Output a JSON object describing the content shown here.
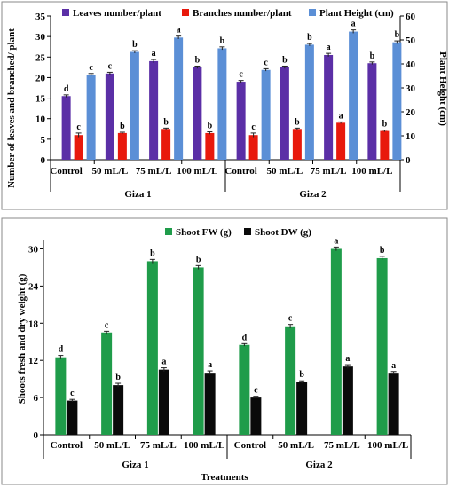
{
  "panels": [
    {
      "chart_data": {
        "type": "bar",
        "categories": [
          "Control",
          "50 mL/L",
          "75 mL/L",
          "100 mL/L",
          "Control",
          "50 mL/L",
          "75 mL/L",
          "100 mL/L"
        ],
        "groups": [
          {
            "label": "Giza 1",
            "size": 4
          },
          {
            "label": "Giza 2",
            "size": 4
          }
        ],
        "series": [
          {
            "name": "Leaves number/plant",
            "axis": "left",
            "color": "#5b2fa6",
            "values": [
              15.5,
              21,
              24,
              22.5,
              19,
              22.5,
              25.5,
              23.5
            ],
            "errors": [
              0.3,
              0.3,
              0.4,
              0.3,
              0.3,
              0.3,
              0.4,
              0.3
            ],
            "letters": [
              "d",
              "c",
              "a",
              "b",
              "c",
              "b",
              "a",
              "b"
            ]
          },
          {
            "name": "Branches number/plant",
            "axis": "left",
            "color": "#e8190c",
            "values": [
              6,
              6.5,
              7.5,
              6.5,
              6,
              7.5,
              9,
              7
            ],
            "errors": [
              0.5,
              0.2,
              0.2,
              0.3,
              0.5,
              0.2,
              0.2,
              0.2
            ],
            "letters": [
              "c",
              "b",
              "b",
              "b",
              "c",
              "b",
              "a",
              "b"
            ]
          },
          {
            "name": "Plant Height (cm)",
            "axis": "right",
            "color": "#5b8fd6",
            "values": [
              35.5,
              45,
              51,
              46.5,
              37.5,
              48,
              53.5,
              49
            ],
            "errors": [
              0.5,
              0.5,
              0.6,
              0.6,
              0.5,
              0.5,
              0.7,
              0.6
            ],
            "letters": [
              "c",
              "b",
              "a",
              "b",
              "c",
              "b",
              "a",
              "b"
            ]
          }
        ],
        "ylabel": "Number of leaves and branched/ plant",
        "ylabel_right": "Plant Height (cm)",
        "ylim": [
          0,
          35
        ],
        "yticks": [
          0,
          5,
          10,
          15,
          20,
          25,
          30,
          35
        ],
        "ylim_right": [
          0,
          60
        ],
        "yticks_right": [
          0,
          10,
          20,
          30,
          40,
          50,
          60
        ],
        "legend": "top"
      }
    },
    {
      "chart_data": {
        "type": "bar",
        "categories": [
          "Control",
          "50 mL/L",
          "75 mL/L",
          "100 mL/L",
          "Control",
          "50 mL/L",
          "75 mL/L",
          "100 mL/L"
        ],
        "groups": [
          {
            "label": "Giza 1",
            "size": 4
          },
          {
            "label": "Giza 2",
            "size": 4
          }
        ],
        "series": [
          {
            "name": "Shoot FW (g)",
            "color": "#1f9c4a",
            "values": [
              12.5,
              16.5,
              28,
              27,
              14.5,
              17.5,
              30,
              28.5
            ],
            "errors": [
              0.3,
              0.2,
              0.3,
              0.3,
              0.2,
              0.3,
              0.3,
              0.3
            ],
            "letters": [
              "d",
              "c",
              "b",
              "b",
              "d",
              "c",
              "a",
              "b"
            ]
          },
          {
            "name": "Shoot DW (g)",
            "color": "#0a0a0a",
            "values": [
              5.5,
              8,
              10.5,
              10,
              6,
              8.5,
              11,
              10
            ],
            "errors": [
              0.2,
              0.3,
              0.3,
              0.3,
              0.2,
              0.2,
              0.3,
              0.2
            ],
            "letters": [
              "c",
              "b",
              "a",
              "a",
              "c",
              "b",
              "a",
              "a"
            ]
          }
        ],
        "ylabel": "Shoots fresh and dry weight (g)",
        "xlabel": "Treatments",
        "ylim": [
          0,
          31.5
        ],
        "yticks": [
          0,
          6,
          12,
          18,
          24,
          30
        ],
        "legend": "top"
      }
    }
  ]
}
